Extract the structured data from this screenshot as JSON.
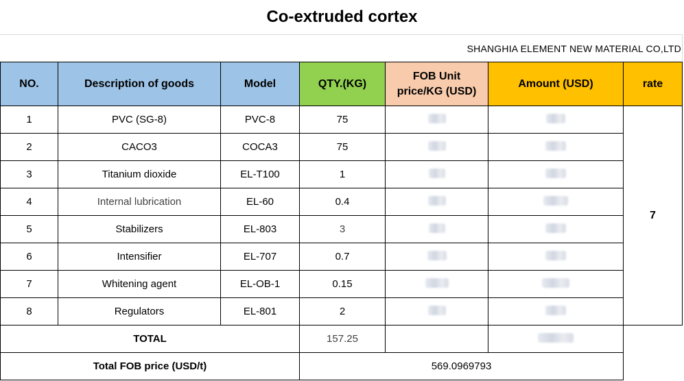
{
  "title": "Co-extruded cortex",
  "company": "SHANGHIA  ELEMENT NEW MATERIAL CO,LTD",
  "headers": {
    "no": "NO.",
    "description": "Description of goods",
    "model": "Model",
    "qty": "QTY.(KG)",
    "fob_unit_line1": "FOB Unit",
    "fob_unit_line2": "price/KG  (USD)",
    "amount": "Amount  (USD)",
    "rate": "rate"
  },
  "header_colors": {
    "no": "#9dc3e6",
    "description": "#9dc3e6",
    "model": "#9dc3e6",
    "qty": "#92d050",
    "fob_unit": "#f8cbad",
    "amount": "#ffc000",
    "rate": "#ffc000"
  },
  "rows": [
    {
      "no": "1",
      "description": "PVC  (SG-8)",
      "model": "PVC-8",
      "qty": "75"
    },
    {
      "no": "2",
      "description": "CACO3",
      "model": "COCA3",
      "qty": "75"
    },
    {
      "no": "3",
      "description": "Titanium dioxide",
      "model": "EL-T100",
      "qty": "1"
    },
    {
      "no": "4",
      "description": "Internal lubrication",
      "model": "EL-60",
      "qty": "0.4"
    },
    {
      "no": "5",
      "description": "Stabilizers",
      "model": "EL-803",
      "qty": "3"
    },
    {
      "no": "6",
      "description": "Intensifier",
      "model": "EL-707",
      "qty": "0.7"
    },
    {
      "no": "7",
      "description": "Whitening agent",
      "model": "EL-OB-1",
      "qty": "0.15"
    },
    {
      "no": "8",
      "description": "Regulators",
      "model": "EL-801",
      "qty": "2"
    }
  ],
  "rate_value": "7",
  "total": {
    "label": "TOTAL",
    "qty": "157.25"
  },
  "fob_total": {
    "label": "Total FOB price (USD/t)",
    "value": "569.0969793"
  }
}
